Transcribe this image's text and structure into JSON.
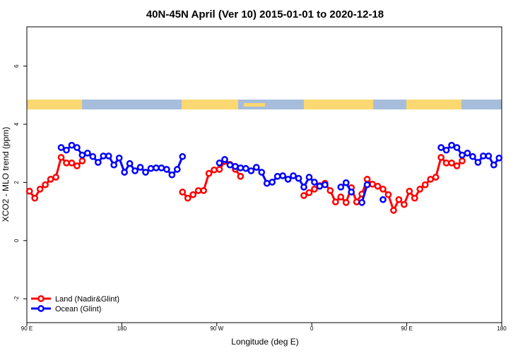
{
  "chart_data": {
    "type": "line",
    "title": "40N-45N April (Ver 10)   2015-01-01 to 2020-12-18",
    "x_label": "Longitude (deg E)",
    "y_label": "XCO2 - MLO trend (ppm)",
    "x": [
      92.5,
      97.5,
      102.5,
      107.5,
      112.5,
      117.5,
      122.5,
      127.5,
      132.5,
      137.5,
      142.5,
      147.5,
      152.5,
      157.5,
      162.5,
      167.5,
      172.5,
      177.5,
      182.5,
      187.5,
      192.5,
      197.5,
      202.5,
      207.5,
      212.5,
      217.5,
      222.5,
      227.5,
      232.5,
      237.5,
      242.5,
      247.5,
      252.5,
      257.5,
      262.5,
      267.5,
      272.5,
      277.5,
      282.5,
      287.5,
      292.5,
      297.5,
      302.5,
      307.5,
      312.5,
      317.5,
      322.5,
      327.5,
      332.5,
      337.5,
      342.5,
      347.5,
      352.5,
      357.5,
      362.5,
      367.5,
      372.5,
      377.5,
      382.5,
      387.5,
      392.5,
      397.5,
      402.5,
      407.5,
      412.5,
      417.5,
      422.5,
      427.5,
      432.5,
      437.5,
      442.5,
      447.5,
      452.5,
      457.5,
      462.5,
      467.5,
      472.5,
      477.5,
      482.5,
      487.5,
      492.5,
      497.5,
      502.5,
      507.5,
      512.5,
      517.5,
      522.5,
      527.5,
      532.5,
      537.5
    ],
    "series": [
      {
        "name": "Land (Nadir&Glint)",
        "color": "#ff0000",
        "values": [
          1.7,
          1.46,
          1.77,
          1.92,
          2.11,
          2.18,
          2.86,
          2.67,
          2.67,
          2.57,
          2.74,
          null,
          null,
          null,
          null,
          null,
          null,
          null,
          null,
          null,
          null,
          null,
          null,
          null,
          null,
          null,
          null,
          null,
          null,
          1.67,
          1.46,
          1.58,
          1.72,
          1.72,
          2.31,
          2.43,
          2.45,
          2.72,
          2.62,
          2.45,
          2.21,
          null,
          null,
          null,
          null,
          null,
          null,
          null,
          null,
          null,
          null,
          null,
          1.55,
          1.65,
          1.77,
          1.89,
          1.97,
          1.72,
          1.33,
          1.5,
          1.31,
          1.82,
          1.33,
          1.6,
          2.11,
          1.94,
          1.87,
          1.77,
          1.58,
          1.04,
          1.41,
          1.24,
          1.7,
          1.46,
          1.77,
          1.92,
          2.11,
          2.18,
          2.86,
          2.67,
          2.67,
          2.57,
          2.74,
          null,
          null,
          null,
          null,
          null,
          null,
          null
        ]
      },
      {
        "name": "Ocean (Glint)",
        "color": "#0000ff",
        "values": [
          null,
          null,
          null,
          null,
          null,
          null,
          3.2,
          3.11,
          3.28,
          3.2,
          2.94,
          3.01,
          2.89,
          2.69,
          2.91,
          2.91,
          2.6,
          2.84,
          2.35,
          2.65,
          2.4,
          2.52,
          2.35,
          2.48,
          2.5,
          2.5,
          2.45,
          2.26,
          2.45,
          2.89,
          null,
          null,
          null,
          null,
          null,
          null,
          2.67,
          2.79,
          2.6,
          2.55,
          2.5,
          2.48,
          2.4,
          2.52,
          2.35,
          1.97,
          2.01,
          2.21,
          2.23,
          2.11,
          2.23,
          2.14,
          1.84,
          2.18,
          2.01,
          1.87,
          1.92,
          null,
          null,
          1.84,
          1.99,
          1.67,
          null,
          1.31,
          1.92,
          null,
          null,
          1.41,
          null,
          null,
          null,
          null,
          null,
          null,
          null,
          null,
          null,
          null,
          3.2,
          3.11,
          3.28,
          3.2,
          2.94,
          3.01,
          2.89,
          2.69,
          2.91,
          2.91,
          2.6,
          2.84
        ]
      }
    ],
    "xlim": [
      90,
      540
    ],
    "xticks": [
      {
        "value": 90,
        "label": "90 E"
      },
      180,
      {
        "value": 270,
        "label": "90 W"
      },
      {
        "value": 360,
        "label": "0"
      },
      {
        "value": 450,
        "label": "90 E"
      },
      {
        "value": 540,
        "label": "180"
      }
    ],
    "ylim": [
      -2.82,
      7.35
    ],
    "yticks": [
      -2,
      0,
      2,
      4,
      6
    ],
    "legend": "bottom-left"
  }
}
